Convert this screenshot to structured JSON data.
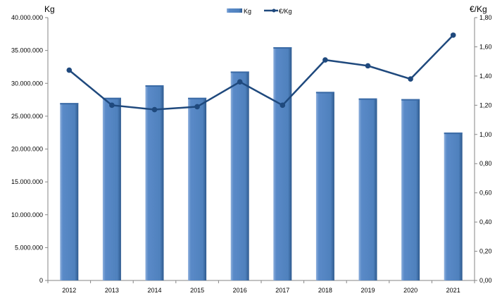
{
  "chart_data": {
    "type": "bar+line",
    "categories": [
      "2012",
      "2013",
      "2014",
      "2015",
      "2016",
      "2017",
      "2018",
      "2019",
      "2020",
      "2021"
    ],
    "series": [
      {
        "name": "Kg",
        "type": "bar",
        "axis": "left",
        "color": "#4f81bd",
        "values": [
          27000000,
          27800000,
          29700000,
          27800000,
          31800000,
          35500000,
          28700000,
          27700000,
          27600000,
          22500000
        ]
      },
      {
        "name": "€/Kg",
        "type": "line",
        "axis": "right",
        "color": "#1f497d",
        "values": [
          1.44,
          1.2,
          1.17,
          1.19,
          1.36,
          1.2,
          1.51,
          1.47,
          1.38,
          1.68
        ]
      }
    ],
    "left_axis": {
      "label": "Kg",
      "ylim": [
        0,
        40000000
      ],
      "ticks": [
        "0",
        "5.000.000",
        "10.000.000",
        "15.000.000",
        "20.000.000",
        "25.000.000",
        "30.000.000",
        "35.000.000",
        "40.000.000"
      ]
    },
    "right_axis": {
      "label": "€/Kg",
      "ylim": [
        0,
        1.8
      ],
      "ticks": [
        "0,00",
        "0,20",
        "0,40",
        "0,60",
        "0,80",
        "1,00",
        "1,20",
        "1,40",
        "1,60",
        "1,80"
      ]
    },
    "legend": {
      "placement": "top",
      "entries": [
        "Kg",
        "€/Kg"
      ]
    },
    "grid": false
  }
}
